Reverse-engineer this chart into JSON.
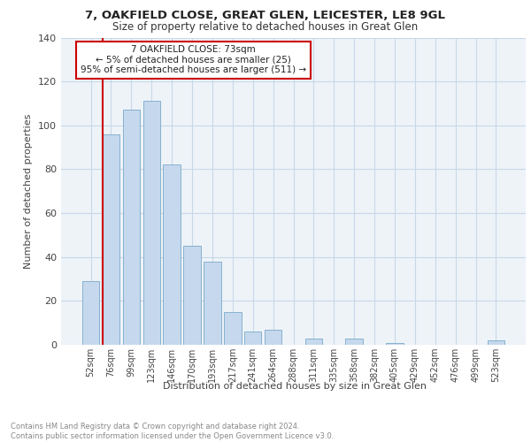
{
  "title1": "7, OAKFIELD CLOSE, GREAT GLEN, LEICESTER, LE8 9GL",
  "title2": "Size of property relative to detached houses in Great Glen",
  "xlabel": "Distribution of detached houses by size in Great Glen",
  "ylabel": "Number of detached properties",
  "bar_labels": [
    "52sqm",
    "76sqm",
    "99sqm",
    "123sqm",
    "146sqm",
    "170sqm",
    "193sqm",
    "217sqm",
    "241sqm",
    "264sqm",
    "288sqm",
    "311sqm",
    "335sqm",
    "358sqm",
    "382sqm",
    "405sqm",
    "429sqm",
    "452sqm",
    "476sqm",
    "499sqm",
    "523sqm"
  ],
  "bar_values": [
    29,
    96,
    107,
    111,
    82,
    45,
    38,
    15,
    6,
    7,
    0,
    3,
    0,
    3,
    0,
    1,
    0,
    0,
    0,
    0,
    2
  ],
  "bar_color": "#c5d8ed",
  "bar_edge_color": "#7aaac8",
  "annotation_text": "7 OAKFIELD CLOSE: 73sqm\n← 5% of detached houses are smaller (25)\n95% of semi-detached houses are larger (511) →",
  "annotation_box_color": "#ffffff",
  "annotation_box_edge_color": "#cc0000",
  "vline_color": "#cc0000",
  "ylim": [
    0,
    140
  ],
  "yticks": [
    0,
    20,
    40,
    60,
    80,
    100,
    120,
    140
  ],
  "grid_color": "#c8d8e8",
  "footer_text": "Contains HM Land Registry data © Crown copyright and database right 2024.\nContains public sector information licensed under the Open Government Licence v3.0.",
  "bg_color": "#eef3f8",
  "vline_bar_index": 0.58
}
